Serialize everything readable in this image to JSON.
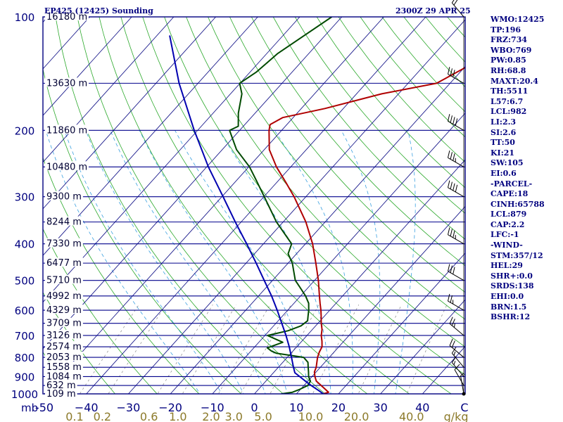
{
  "header": {
    "station": "EP425 (12425) Sounding",
    "time": "2300Z 29 APR 25"
  },
  "colors": {
    "frame": "#00007f",
    "isobar": "#00008b",
    "temperature": "#b00000",
    "dewpoint": "#004a00",
    "parcel": "#0000b0",
    "isotherm": "#1a1a8c",
    "dry_adiabat": "#2aa82a",
    "moist_adiabat": "#3aa0e0",
    "mixing_ratio": "#888888",
    "temp_axis_label": "#00007f",
    "mixing_axis_label": "#8c7a2a"
  },
  "stats": [
    "WMO:12425",
    "TP:196",
    "FRZ:734",
    "WBO:769",
    "PW:0.85",
    "RH:68.8",
    "MAXT:20.4",
    "TH:5511",
    "L57:6.7",
    "LCL:982",
    "LI:2.3",
    "SI:2.6",
    "TT:50",
    "KI:21",
    "SW:105",
    "EI:0.6",
    "-PARCEL-",
    "CAPE:18",
    "CINH:65788",
    "LCL:879",
    "CAP:2.2",
    "LFC:-1",
    "-WIND-",
    "STM:357/12",
    "HEL:29",
    "SHR+:0.0",
    "SRDS:138",
    "EHI:0.0",
    "BRN:1.5",
    "BSHR:12"
  ],
  "chart_data": {
    "type": "line",
    "title": "EP425 (12425) Sounding",
    "subtitle": "2300Z 29 APR 25",
    "pressure_unit_label": "mb",
    "pressure_range": [
      1000,
      100
    ],
    "pressure_ticks": [
      {
        "p": 100,
        "label": "100"
      },
      {
        "p": 200,
        "label": "200"
      },
      {
        "p": 300,
        "label": "300"
      },
      {
        "p": 400,
        "label": "400"
      },
      {
        "p": 500,
        "label": "500"
      },
      {
        "p": 600,
        "label": "600"
      },
      {
        "p": 700,
        "label": "700"
      },
      {
        "p": 800,
        "label": "800"
      },
      {
        "p": 900,
        "label": "900"
      },
      {
        "p": 1000,
        "label": "1000"
      }
    ],
    "temperature_ticks": [
      {
        "t": -50,
        "label": "-50"
      },
      {
        "t": -40,
        "label": "−40"
      },
      {
        "t": -30,
        "label": "−30"
      },
      {
        "t": -20,
        "label": "−20"
      },
      {
        "t": -10,
        "label": "−10"
      },
      {
        "t": 0,
        "label": "0"
      },
      {
        "t": 10,
        "label": "10"
      },
      {
        "t": 20,
        "label": "20"
      },
      {
        "t": 30,
        "label": "30"
      },
      {
        "t": 40,
        "label": "40"
      },
      {
        "t": 50,
        "label": "C"
      }
    ],
    "mixing_ratio_ticks": [
      {
        "t": -42.8,
        "label": "0.1"
      },
      {
        "t": -36.2,
        "label": "0.2"
      },
      {
        "t": -25.1,
        "label": "0.6"
      },
      {
        "t": -18.2,
        "label": "1.0"
      },
      {
        "t": -10.3,
        "label": "2.0"
      },
      {
        "t": -4.9,
        "label": "3.0"
      },
      {
        "t": 2.1,
        "label": "5.0"
      },
      {
        "t": 13.4,
        "label": "10.0"
      },
      {
        "t": 24.3,
        "label": "20.0"
      },
      {
        "t": 37.4,
        "label": "40.0"
      },
      {
        "t": 48,
        "label": "g/kg"
      }
    ],
    "height_labels": [
      {
        "p": 1000,
        "label": "109 m"
      },
      {
        "p": 950,
        "label": "632 m"
      },
      {
        "p": 900,
        "label": "1084 m"
      },
      {
        "p": 850,
        "label": "1558 m"
      },
      {
        "p": 800,
        "label": "2053 m"
      },
      {
        "p": 750,
        "label": "2574 m"
      },
      {
        "p": 700,
        "label": "3126 m"
      },
      {
        "p": 650,
        "label": "3709 m"
      },
      {
        "p": 600,
        "label": "4329 m"
      },
      {
        "p": 550,
        "label": "4992 m"
      },
      {
        "p": 500,
        "label": "5710 m"
      },
      {
        "p": 450,
        "label": "6477 m"
      },
      {
        "p": 400,
        "label": "7330 m"
      },
      {
        "p": 350,
        "label": "8244 m"
      },
      {
        "p": 300,
        "label": "9300 m"
      },
      {
        "p": 250,
        "label": "10480 m"
      },
      {
        "p": 200,
        "label": "11860 m"
      },
      {
        "p": 150,
        "label": "13630 m"
      },
      {
        "p": 100,
        "label": "16180 m"
      }
    ],
    "series": [
      {
        "id": "temperature",
        "points": [
          [
            1000,
            16.4
          ],
          [
            990,
            17.3
          ],
          [
            950,
            14.1
          ],
          [
            925,
            12.0
          ],
          [
            900,
            10.7
          ],
          [
            875,
            9.6
          ],
          [
            850,
            9.0
          ],
          [
            800,
            7.2
          ],
          [
            775,
            6.5
          ],
          [
            750,
            6.0
          ],
          [
            725,
            4.8
          ],
          [
            700,
            3.4
          ],
          [
            675,
            2.3
          ],
          [
            650,
            0.8
          ],
          [
            625,
            -0.6
          ],
          [
            600,
            -2.1
          ],
          [
            575,
            -3.8
          ],
          [
            550,
            -5.5
          ],
          [
            500,
            -9.1
          ],
          [
            450,
            -13.4
          ],
          [
            400,
            -18.3
          ],
          [
            350,
            -24.6
          ],
          [
            300,
            -32.8
          ],
          [
            275,
            -37.8
          ],
          [
            250,
            -43.4
          ],
          [
            225,
            -48.8
          ],
          [
            200,
            -53.0
          ],
          [
            193,
            -54.0
          ],
          [
            185,
            -52.5
          ],
          [
            175,
            -44.4
          ],
          [
            160,
            -34.0
          ],
          [
            150,
            -23.2
          ],
          [
            125,
            -16.6
          ],
          [
            100,
            -10.1
          ]
        ]
      },
      {
        "id": "dewpoint",
        "points": [
          [
            1000,
            6.4
          ],
          [
            990,
            8.7
          ],
          [
            975,
            9.7
          ],
          [
            950,
            10.9
          ],
          [
            925,
            10.6
          ],
          [
            900,
            9.2
          ],
          [
            875,
            8.2
          ],
          [
            850,
            7.1
          ],
          [
            825,
            6.0
          ],
          [
            800,
            3.9
          ],
          [
            780,
            -3.5
          ],
          [
            770,
            -5.1
          ],
          [
            755,
            -6.8
          ],
          [
            730,
            -4.3
          ],
          [
            700,
            -9.4
          ],
          [
            680,
            -5.5
          ],
          [
            660,
            -3.5
          ],
          [
            640,
            -3.0
          ],
          [
            620,
            -4.0
          ],
          [
            600,
            -5.0
          ],
          [
            575,
            -6.5
          ],
          [
            550,
            -8.8
          ],
          [
            525,
            -11.6
          ],
          [
            500,
            -14.6
          ],
          [
            450,
            -19.0
          ],
          [
            425,
            -22.0
          ],
          [
            400,
            -23.3
          ],
          [
            350,
            -31.6
          ],
          [
            300,
            -39.9
          ],
          [
            275,
            -44.6
          ],
          [
            250,
            -49.8
          ],
          [
            225,
            -56.6
          ],
          [
            200,
            -62.4
          ],
          [
            195,
            -61.2
          ],
          [
            180,
            -64.0
          ],
          [
            160,
            -67.3
          ],
          [
            150,
            -70.1
          ],
          [
            140,
            -68.5
          ],
          [
            125,
            -67.4
          ],
          [
            100,
            -62.4
          ]
        ]
      },
      {
        "id": "parcel",
        "points": [
          [
            1000,
            16.4
          ],
          [
            980,
            14.6
          ],
          [
            950,
            11.7
          ],
          [
            925,
            9.4
          ],
          [
            900,
            7.1
          ],
          [
            879,
            5.1
          ],
          [
            850,
            3.6
          ],
          [
            800,
            1.0
          ],
          [
            750,
            -1.8
          ],
          [
            700,
            -5.0
          ],
          [
            650,
            -8.6
          ],
          [
            600,
            -12.5
          ],
          [
            550,
            -16.9
          ],
          [
            500,
            -22.0
          ],
          [
            450,
            -27.6
          ],
          [
            400,
            -34.0
          ],
          [
            350,
            -41.4
          ],
          [
            300,
            -49.7
          ],
          [
            250,
            -59.6
          ],
          [
            200,
            -70.8
          ],
          [
            150,
            -84.5
          ],
          [
            112,
            -97.0
          ]
        ]
      }
    ],
    "wind_barbs": [
      {
        "p": 1000,
        "dir": 350,
        "spd": 5
      },
      {
        "p": 950,
        "dir": 330,
        "spd": 10
      },
      {
        "p": 900,
        "dir": 320,
        "spd": 15
      },
      {
        "p": 850,
        "dir": 320,
        "spd": 15
      },
      {
        "p": 800,
        "dir": 310,
        "spd": 20
      },
      {
        "p": 700,
        "dir": 310,
        "spd": 25
      },
      {
        "p": 600,
        "dir": 300,
        "spd": 25
      },
      {
        "p": 500,
        "dir": 300,
        "spd": 30
      },
      {
        "p": 400,
        "dir": 300,
        "spd": 35
      },
      {
        "p": 300,
        "dir": 300,
        "spd": 40
      },
      {
        "p": 250,
        "dir": 300,
        "spd": 35
      },
      {
        "p": 200,
        "dir": 300,
        "spd": 40
      },
      {
        "p": 150,
        "dir": 300,
        "spd": 30
      },
      {
        "p": 100,
        "dir": 320,
        "spd": 20
      }
    ]
  }
}
